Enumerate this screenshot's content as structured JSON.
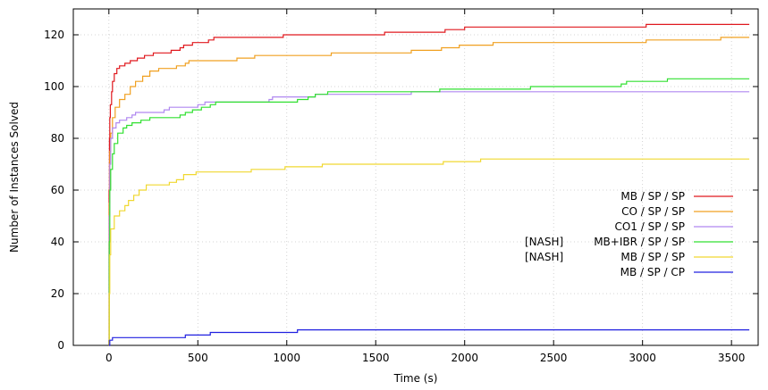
{
  "chart_data": {
    "type": "line",
    "title": "",
    "xlabel": "Time (s)",
    "ylabel": "Number of Instances Solved",
    "xlim": [
      -200,
      3650
    ],
    "ylim": [
      0,
      130
    ],
    "xticks": [
      0,
      500,
      1000,
      1500,
      2000,
      2500,
      3000,
      3500
    ],
    "yticks": [
      0,
      20,
      40,
      60,
      80,
      100,
      120
    ],
    "grid": true,
    "legend_position": "right",
    "step": true,
    "series": [
      {
        "name": "MB / SP / SP",
        "color": "#e0191f",
        "legend_prefix": "",
        "points": [
          [
            0,
            0
          ],
          [
            1,
            60
          ],
          [
            3,
            80
          ],
          [
            5,
            88
          ],
          [
            8,
            93
          ],
          [
            15,
            98
          ],
          [
            20,
            102
          ],
          [
            30,
            105
          ],
          [
            45,
            107
          ],
          [
            60,
            108
          ],
          [
            90,
            109
          ],
          [
            120,
            110
          ],
          [
            160,
            111
          ],
          [
            200,
            112
          ],
          [
            250,
            113
          ],
          [
            350,
            114
          ],
          [
            400,
            115
          ],
          [
            420,
            116
          ],
          [
            470,
            117
          ],
          [
            560,
            118
          ],
          [
            590,
            119
          ],
          [
            980,
            120
          ],
          [
            1550,
            121
          ],
          [
            1890,
            122
          ],
          [
            2000,
            123
          ],
          [
            3020,
            124
          ],
          [
            3600,
            124
          ]
        ]
      },
      {
        "name": "CO / SP / SP",
        "color": "#f0a020",
        "legend_prefix": "",
        "points": [
          [
            0,
            0
          ],
          [
            2,
            55
          ],
          [
            5,
            75
          ],
          [
            10,
            82
          ],
          [
            20,
            88
          ],
          [
            35,
            92
          ],
          [
            60,
            95
          ],
          [
            90,
            97
          ],
          [
            120,
            100
          ],
          [
            150,
            102
          ],
          [
            190,
            104
          ],
          [
            230,
            106
          ],
          [
            280,
            107
          ],
          [
            380,
            108
          ],
          [
            430,
            109
          ],
          [
            450,
            110
          ],
          [
            720,
            111
          ],
          [
            820,
            112
          ],
          [
            1250,
            113
          ],
          [
            1700,
            114
          ],
          [
            1870,
            115
          ],
          [
            1970,
            116
          ],
          [
            2160,
            117
          ],
          [
            3020,
            118
          ],
          [
            3440,
            119
          ],
          [
            3600,
            119
          ]
        ]
      },
      {
        "name": "CO1 / SP / SP",
        "color": "#b088f0",
        "legend_prefix": "",
        "points": [
          [
            0,
            0
          ],
          [
            2,
            50
          ],
          [
            5,
            70
          ],
          [
            10,
            80
          ],
          [
            20,
            84
          ],
          [
            40,
            86
          ],
          [
            60,
            87
          ],
          [
            100,
            88
          ],
          [
            130,
            89
          ],
          [
            150,
            90
          ],
          [
            310,
            91
          ],
          [
            340,
            92
          ],
          [
            500,
            93
          ],
          [
            540,
            94
          ],
          [
            900,
            95
          ],
          [
            920,
            96
          ],
          [
            1160,
            97
          ],
          [
            1700,
            98
          ],
          [
            3600,
            98
          ]
        ]
      },
      {
        "name": "MB+IBR / SP / SP",
        "color": "#30e030",
        "legend_prefix": "[NASH]",
        "points": [
          [
            0,
            0
          ],
          [
            2,
            40
          ],
          [
            5,
            60
          ],
          [
            10,
            68
          ],
          [
            20,
            74
          ],
          [
            30,
            78
          ],
          [
            50,
            82
          ],
          [
            80,
            84
          ],
          [
            100,
            85
          ],
          [
            130,
            86
          ],
          [
            180,
            87
          ],
          [
            230,
            88
          ],
          [
            400,
            89
          ],
          [
            430,
            90
          ],
          [
            470,
            91
          ],
          [
            520,
            92
          ],
          [
            570,
            93
          ],
          [
            600,
            94
          ],
          [
            1060,
            95
          ],
          [
            1120,
            96
          ],
          [
            1160,
            97
          ],
          [
            1230,
            98
          ],
          [
            1860,
            99
          ],
          [
            2370,
            100
          ],
          [
            2880,
            101
          ],
          [
            2910,
            102
          ],
          [
            3140,
            103
          ],
          [
            3600,
            103
          ]
        ]
      },
      {
        "name": "MB / SP / SP",
        "color": "#f0d830",
        "legend_prefix": "[NASH]",
        "points": [
          [
            0,
            0
          ],
          [
            2,
            20
          ],
          [
            5,
            35
          ],
          [
            10,
            45
          ],
          [
            30,
            50
          ],
          [
            60,
            52
          ],
          [
            90,
            54
          ],
          [
            110,
            56
          ],
          [
            140,
            58
          ],
          [
            170,
            60
          ],
          [
            210,
            62
          ],
          [
            340,
            63
          ],
          [
            380,
            64
          ],
          [
            420,
            66
          ],
          [
            490,
            67
          ],
          [
            800,
            68
          ],
          [
            990,
            69
          ],
          [
            1200,
            70
          ],
          [
            1880,
            71
          ],
          [
            2090,
            72
          ],
          [
            3600,
            72
          ]
        ]
      },
      {
        "name": "MB / SP / CP",
        "color": "#2020e0",
        "legend_prefix": "",
        "points": [
          [
            0,
            0
          ],
          [
            5,
            2
          ],
          [
            20,
            3
          ],
          [
            430,
            4
          ],
          [
            570,
            5
          ],
          [
            1060,
            6
          ],
          [
            3600,
            6
          ]
        ]
      }
    ]
  }
}
